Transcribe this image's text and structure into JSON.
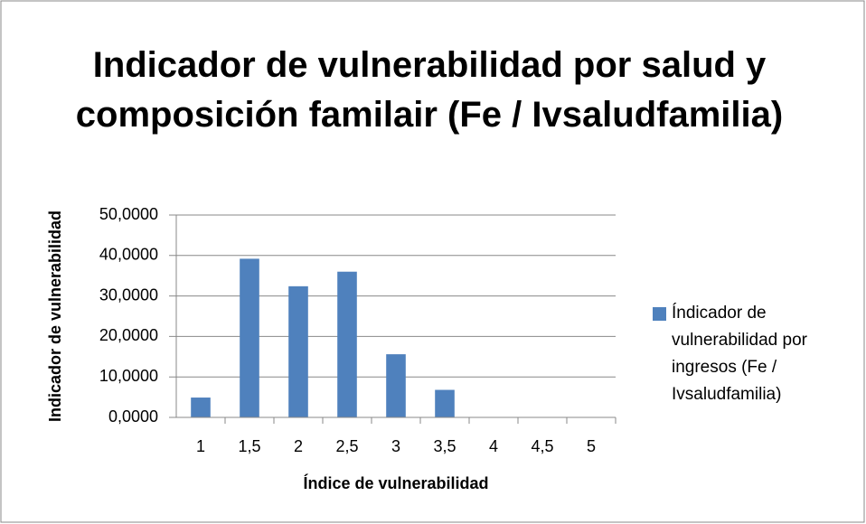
{
  "chart_data": {
    "type": "bar",
    "title": "Indicador de vulnerabilidad por salud y composición familair (Fe / Ivsaludfamilia)",
    "x_label": "Índice de vulnerabilidad",
    "y_label": "Indicador de vulnerabilidad",
    "categories": [
      "1",
      "1,5",
      "2",
      "2,5",
      "3",
      "3,5",
      "4",
      "4,5",
      "5"
    ],
    "series": [
      {
        "name": "Índicador de vulnerabilidad por ingresos (Fe / Ivsaludfamilia)",
        "color": "#4f81bd",
        "values": [
          4.9,
          39.2,
          32.4,
          36.0,
          15.6,
          6.8,
          0,
          0,
          0
        ]
      }
    ],
    "ylim": [
      0,
      50
    ],
    "yticks": [
      {
        "value": 0,
        "label": "0,0000"
      },
      {
        "value": 10,
        "label": "10,0000"
      },
      {
        "value": 20,
        "label": "20,0000"
      },
      {
        "value": 30,
        "label": "30,0000"
      },
      {
        "value": 40,
        "label": "40,0000"
      },
      {
        "value": 50,
        "label": "50,0000"
      }
    ],
    "grid": true,
    "legend": "right"
  }
}
